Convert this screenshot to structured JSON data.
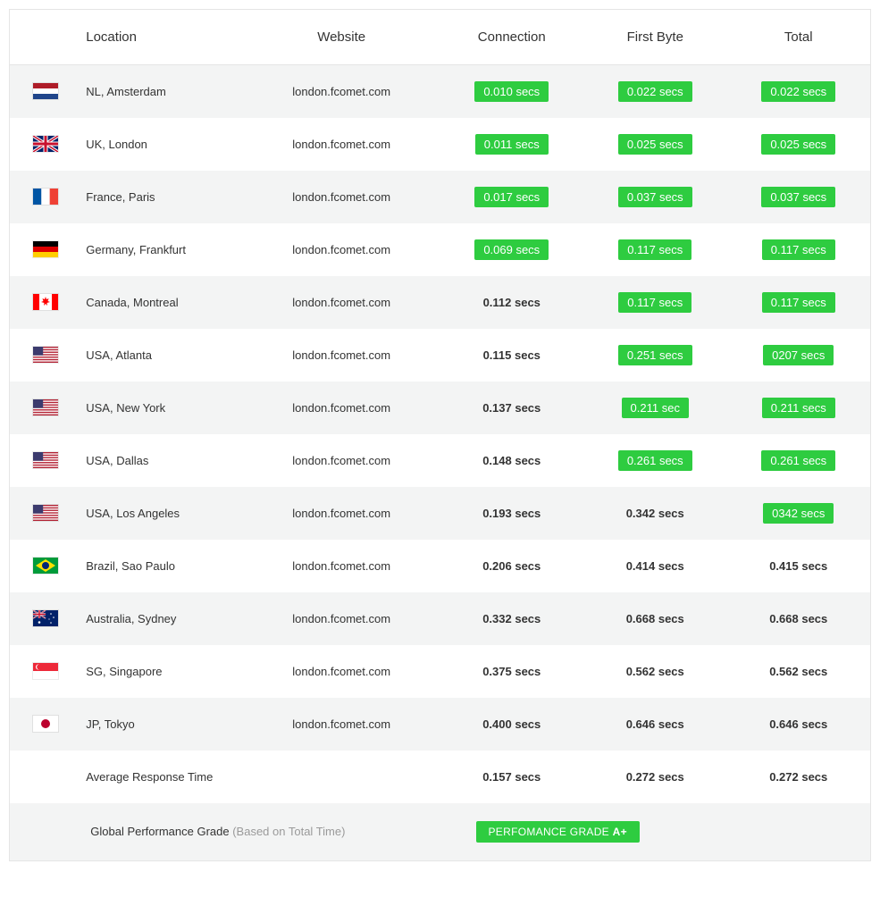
{
  "colors": {
    "highlight_bg": "#2ecc40",
    "highlight_text": "#ffffff",
    "row_odd": "#f3f4f4",
    "row_even": "#ffffff",
    "text": "#333333",
    "muted": "#9a9a9a",
    "border": "#e5e5e5"
  },
  "headers": {
    "location": "Location",
    "website": "Website",
    "connection": "Connection",
    "first_byte": "First Byte",
    "total": "Total"
  },
  "rows": [
    {
      "flag": "nl",
      "location": "NL, Amsterdam",
      "website": "london.fcomet.com",
      "connection": {
        "value": "0.010 secs",
        "hl": true
      },
      "first_byte": {
        "value": "0.022 secs",
        "hl": true
      },
      "total": {
        "value": "0.022 secs",
        "hl": true
      }
    },
    {
      "flag": "uk",
      "location": "UK, London",
      "website": "london.fcomet.com",
      "connection": {
        "value": "0.011 secs",
        "hl": true
      },
      "first_byte": {
        "value": "0.025 secs",
        "hl": true
      },
      "total": {
        "value": "0.025 secs",
        "hl": true
      }
    },
    {
      "flag": "fr",
      "location": "France, Paris",
      "website": "london.fcomet.com",
      "connection": {
        "value": "0.017 secs",
        "hl": true
      },
      "first_byte": {
        "value": "0.037 secs",
        "hl": true
      },
      "total": {
        "value": "0.037 secs",
        "hl": true
      }
    },
    {
      "flag": "de",
      "location": "Germany, Frankfurt",
      "website": "london.fcomet.com",
      "connection": {
        "value": "0.069 secs",
        "hl": true
      },
      "first_byte": {
        "value": "0.117 secs",
        "hl": true
      },
      "total": {
        "value": "0.117 secs",
        "hl": true
      }
    },
    {
      "flag": "ca",
      "location": "Canada, Montreal",
      "website": "london.fcomet.com",
      "connection": {
        "value": "0.112 secs",
        "hl": false
      },
      "first_byte": {
        "value": "0.117 secs",
        "hl": true
      },
      "total": {
        "value": "0.117 secs",
        "hl": true
      }
    },
    {
      "flag": "us",
      "location": "USA, Atlanta",
      "website": "london.fcomet.com",
      "connection": {
        "value": "0.115 secs",
        "hl": false
      },
      "first_byte": {
        "value": "0.251 secs",
        "hl": true
      },
      "total": {
        "value": "0207 secs",
        "hl": true
      }
    },
    {
      "flag": "us",
      "location": "USA, New York",
      "website": "london.fcomet.com",
      "connection": {
        "value": "0.137 secs",
        "hl": false
      },
      "first_byte": {
        "value": "0.211 sec",
        "hl": true
      },
      "total": {
        "value": "0.211 secs",
        "hl": true
      }
    },
    {
      "flag": "us",
      "location": "USA, Dallas",
      "website": "london.fcomet.com",
      "connection": {
        "value": "0.148 secs",
        "hl": false
      },
      "first_byte": {
        "value": "0.261 secs",
        "hl": true
      },
      "total": {
        "value": "0.261 secs",
        "hl": true
      }
    },
    {
      "flag": "us",
      "location": "USA, Los Angeles",
      "website": "london.fcomet.com",
      "connection": {
        "value": "0.193 secs",
        "hl": false
      },
      "first_byte": {
        "value": "0.342 secs",
        "hl": false
      },
      "total": {
        "value": "0342 secs",
        "hl": true
      }
    },
    {
      "flag": "br",
      "location": "Brazil, Sao Paulo",
      "website": "london.fcomet.com",
      "connection": {
        "value": "0.206 secs",
        "hl": false
      },
      "first_byte": {
        "value": "0.414 secs",
        "hl": false
      },
      "total": {
        "value": "0.415 secs",
        "hl": false
      }
    },
    {
      "flag": "au",
      "location": "Australia, Sydney",
      "website": "london.fcomet.com",
      "connection": {
        "value": "0.332 secs",
        "hl": false
      },
      "first_byte": {
        "value": "0.668 secs",
        "hl": false
      },
      "total": {
        "value": "0.668 secs",
        "hl": false
      }
    },
    {
      "flag": "sg",
      "location": "SG, Singapore",
      "website": "london.fcomet.com",
      "connection": {
        "value": "0.375 secs",
        "hl": false
      },
      "first_byte": {
        "value": "0.562 secs",
        "hl": false
      },
      "total": {
        "value": "0.562 secs",
        "hl": false
      }
    },
    {
      "flag": "jp",
      "location": "JP, Tokyo",
      "website": "london.fcomet.com",
      "connection": {
        "value": "0.400 secs",
        "hl": false
      },
      "first_byte": {
        "value": "0.646 secs",
        "hl": false
      },
      "total": {
        "value": "0.646 secs",
        "hl": false
      }
    }
  ],
  "average": {
    "label": "Average Response Time",
    "connection": "0.157 secs",
    "first_byte": "0.272 secs",
    "total": "0.272 secs"
  },
  "grade": {
    "label": "Global Performance Grade",
    "sublabel": "(Based on Total Time)",
    "badge_prefix": "PERFOMANCE GRADE ",
    "badge_value": "A+"
  }
}
